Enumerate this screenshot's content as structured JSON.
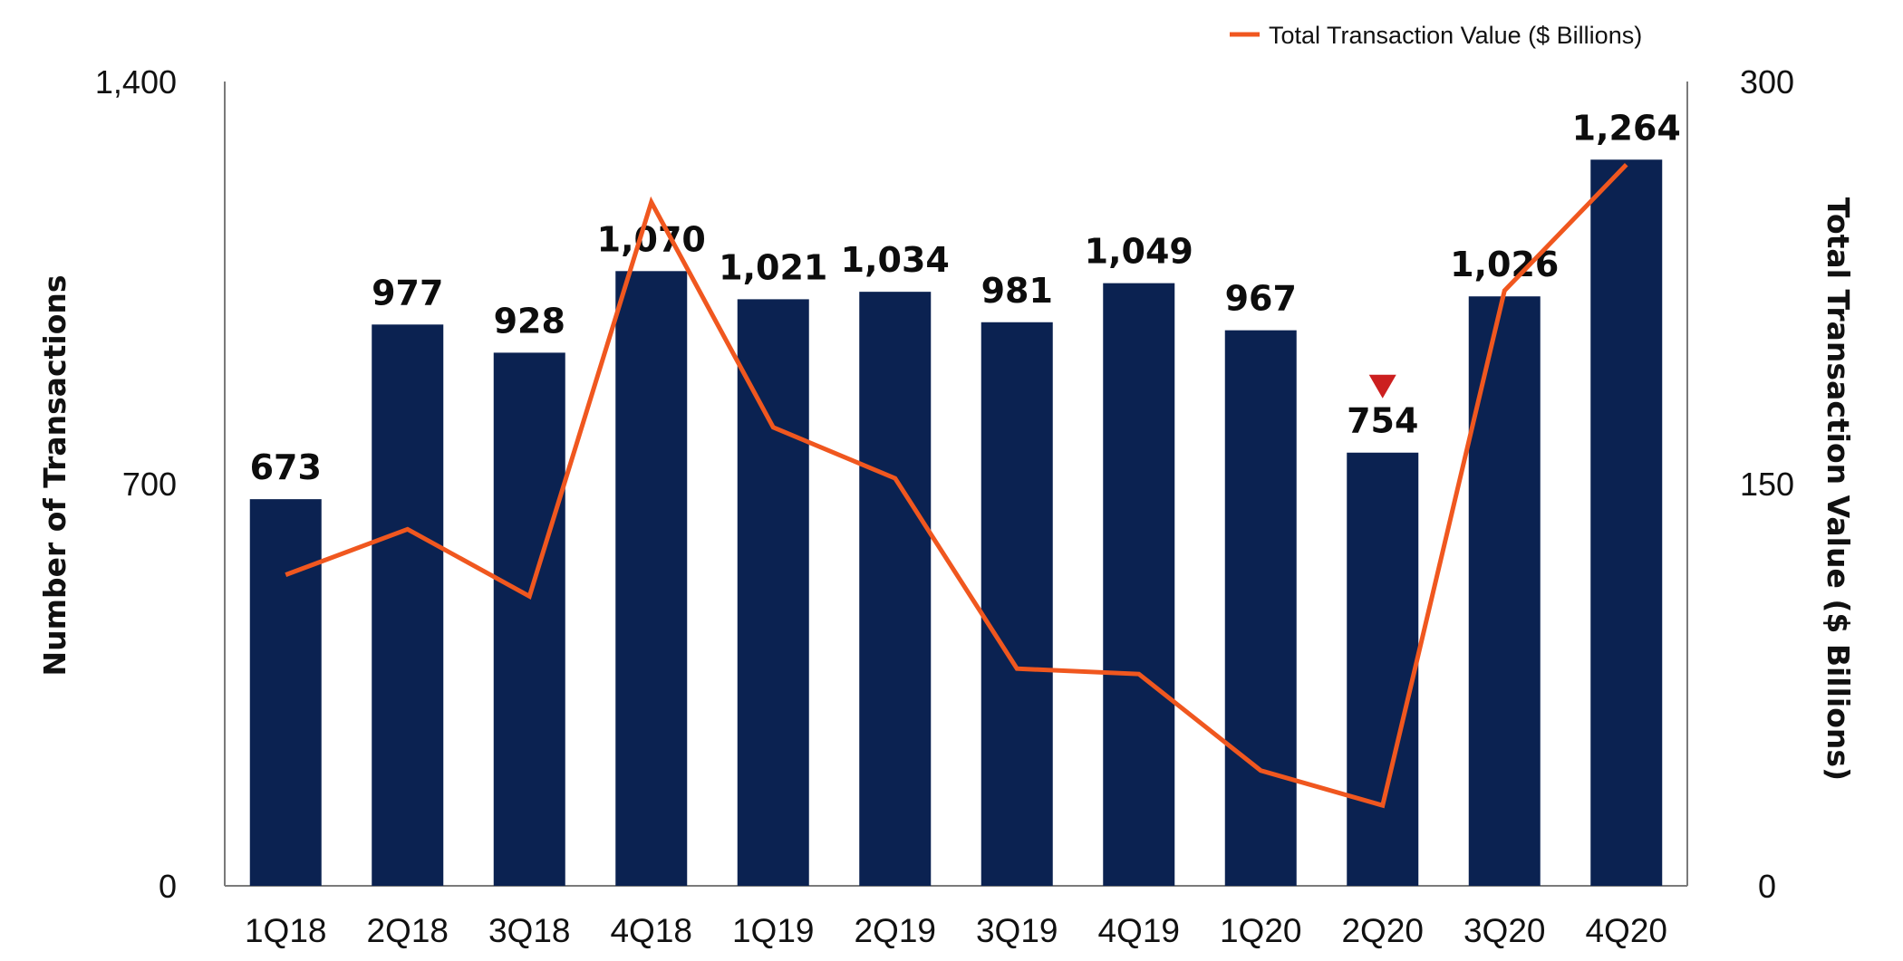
{
  "chart_data": {
    "type": "bar",
    "categories": [
      "1Q18",
      "2Q18",
      "3Q18",
      "4Q18",
      "1Q19",
      "2Q19",
      "3Q19",
      "4Q19",
      "1Q20",
      "2Q20",
      "3Q20",
      "4Q20"
    ],
    "series": [
      {
        "type": "bar",
        "axis": "left",
        "values": [
          673,
          977,
          928,
          1070,
          1021,
          1034,
          981,
          1049,
          967,
          754,
          1026,
          1264
        ],
        "data_labels": [
          "673",
          "977",
          "928",
          "1,070",
          "1,021",
          "1,034",
          "981",
          "1,049",
          "967",
          "754",
          "1,026",
          "1,264"
        ],
        "color": "#0b2251"
      },
      {
        "name": "Total Transaction Value ($ Billions)",
        "type": "line",
        "axis": "right",
        "values": [
          116,
          133,
          108,
          255,
          171,
          152,
          81,
          79,
          43,
          30,
          222,
          269
        ],
        "color": "#f0571f"
      }
    ],
    "ylabel_left": "Number of Transactions",
    "ylabel_right": "Total Transaction Value ($ Billions)",
    "ylim_left": [
      0,
      1400
    ],
    "ylim_right": [
      0,
      300
    ],
    "yticks_left": [
      "0",
      "700",
      "1,400"
    ],
    "yticks_right": [
      "0",
      "150",
      "300"
    ],
    "grid": false,
    "legend_position": "top-right",
    "annotation": {
      "category": "2Q20",
      "symbol": "down-triangle",
      "color": "#cc1f1f"
    }
  }
}
